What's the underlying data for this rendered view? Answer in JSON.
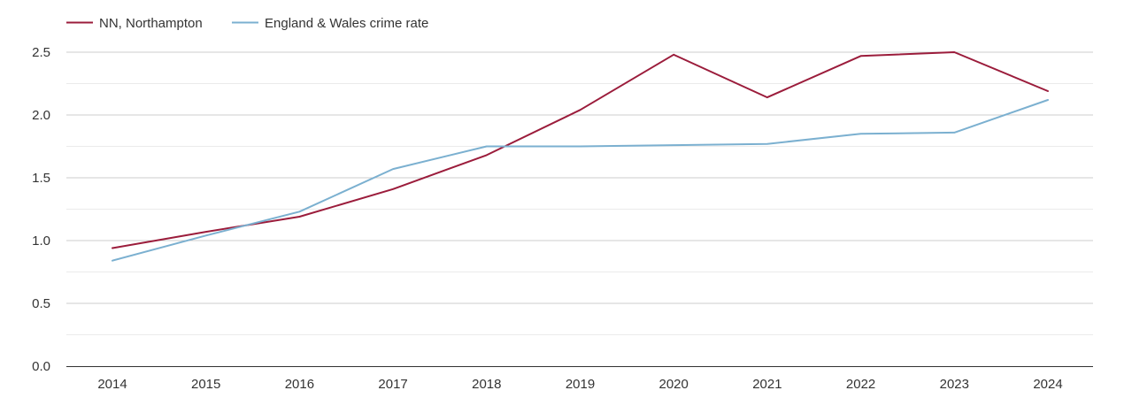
{
  "chart_data": {
    "type": "line",
    "title": "",
    "xlabel": "",
    "ylabel": "",
    "x": [
      2014,
      2015,
      2016,
      2017,
      2018,
      2019,
      2020,
      2021,
      2022,
      2023,
      2024
    ],
    "x_tick_labels": [
      "2014",
      "2015",
      "2016",
      "2017",
      "2018",
      "2019",
      "2020",
      "2021",
      "2022",
      "2023",
      "2024"
    ],
    "ylim": [
      0,
      2.5
    ],
    "y_ticks": [
      0.0,
      0.5,
      1.0,
      1.5,
      2.0,
      2.5
    ],
    "y_tick_labels": [
      "0.0",
      "0.5",
      "1.0",
      "1.5",
      "2.0",
      "2.5"
    ],
    "grid": true,
    "legend_position": "top-left",
    "series": [
      {
        "name": "NN, Northampton",
        "color": "#9b1c3b",
        "values": [
          0.94,
          1.07,
          1.19,
          1.41,
          1.68,
          2.04,
          2.48,
          2.14,
          2.47,
          2.5,
          2.19
        ]
      },
      {
        "name": "England & Wales crime rate",
        "color": "#7bb0d0",
        "values": [
          0.84,
          1.04,
          1.23,
          1.57,
          1.75,
          1.75,
          1.76,
          1.77,
          1.85,
          1.86,
          2.12
        ]
      }
    ]
  }
}
